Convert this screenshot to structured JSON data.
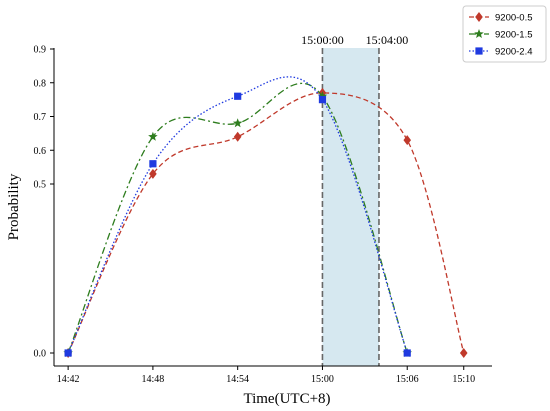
{
  "chart_data": {
    "type": "line",
    "xlabel": "Time(UTC+8)",
    "ylabel": "Probability",
    "x_ticks": [
      "14:42",
      "14:48",
      "14:54",
      "15:00",
      "15:06",
      "15:10"
    ],
    "x_tick_minutes": [
      0,
      6,
      12,
      18,
      24,
      28
    ],
    "y_ticks": [
      "0.0",
      "0.5",
      "0.6",
      "0.7",
      "0.8",
      "0.9"
    ],
    "y_tick_values": [
      0.0,
      0.5,
      0.6,
      0.7,
      0.8,
      0.9
    ],
    "highlight_band": {
      "start": "15:00:00",
      "end": "15:04:00",
      "color": "#d6e8f0"
    },
    "series": [
      {
        "name": "9200-0.5",
        "color": "#c0392b",
        "linestyle": "dashed",
        "marker": "diamond",
        "x": [
          "14:42",
          "14:48",
          "14:54",
          "15:00",
          "15:06",
          "15:10"
        ],
        "y": [
          0.0,
          0.53,
          0.64,
          0.77,
          0.63,
          0.0
        ]
      },
      {
        "name": "9200-1.5",
        "color": "#2e7d1e",
        "linestyle": "dashdot",
        "marker": "star",
        "x": [
          "14:42",
          "14:48",
          "14:54",
          "15:00",
          "15:06"
        ],
        "y": [
          0.0,
          0.64,
          0.68,
          0.76,
          0.0
        ]
      },
      {
        "name": "9200-2.4",
        "color": "#1f3ae0",
        "linestyle": "dotted",
        "marker": "square",
        "x": [
          "14:42",
          "14:48",
          "14:54",
          "15:00",
          "15:06"
        ],
        "y": [
          0.0,
          0.56,
          0.76,
          0.75,
          0.0
        ]
      }
    ],
    "legend_position": "top-right",
    "grid": false
  }
}
